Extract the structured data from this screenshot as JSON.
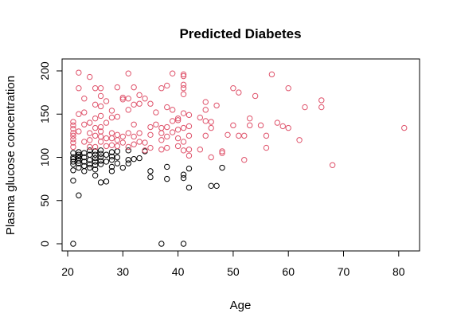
{
  "chart_data": {
    "type": "scatter",
    "title": "Predicted Diabetes",
    "xlabel": "Age",
    "ylabel": "Plasma glucose concentration",
    "xlim": [
      20,
      82
    ],
    "ylim": [
      0,
      200
    ],
    "x_ticks": [
      20,
      30,
      40,
      50,
      60,
      70,
      80
    ],
    "y_ticks": [
      0,
      50,
      100,
      150,
      200
    ],
    "grid": false,
    "legend": "none",
    "series": [
      {
        "color": "#000000",
        "points": [
          [
            21,
            0
          ],
          [
            21,
            73
          ],
          [
            21,
            85
          ],
          [
            21,
            92
          ],
          [
            21,
            95
          ],
          [
            21,
            98
          ],
          [
            21,
            100
          ],
          [
            21,
            105
          ],
          [
            22,
            56
          ],
          [
            22,
            88
          ],
          [
            22,
            93
          ],
          [
            22,
            96
          ],
          [
            22,
            99
          ],
          [
            22,
            101
          ],
          [
            22,
            103
          ],
          [
            22,
            106
          ],
          [
            23,
            84
          ],
          [
            23,
            90
          ],
          [
            23,
            95
          ],
          [
            23,
            100
          ],
          [
            23,
            105
          ],
          [
            24,
            88
          ],
          [
            24,
            92
          ],
          [
            24,
            97
          ],
          [
            24,
            103
          ],
          [
            24,
            108
          ],
          [
            25,
            79
          ],
          [
            25,
            86
          ],
          [
            25,
            91
          ],
          [
            25,
            95
          ],
          [
            25,
            99
          ],
          [
            25,
            103
          ],
          [
            25,
            107
          ],
          [
            26,
            71
          ],
          [
            26,
            92
          ],
          [
            26,
            96
          ],
          [
            26,
            100
          ],
          [
            26,
            104
          ],
          [
            26,
            108
          ],
          [
            27,
            72
          ],
          [
            27,
            95
          ],
          [
            27,
            103
          ],
          [
            28,
            84
          ],
          [
            28,
            89
          ],
          [
            28,
            97
          ],
          [
            28,
            101
          ],
          [
            28,
            106
          ],
          [
            29,
            93
          ],
          [
            29,
            100
          ],
          [
            29,
            107
          ],
          [
            30,
            88
          ],
          [
            31,
            93
          ],
          [
            31,
            97
          ],
          [
            31,
            108
          ],
          [
            32,
            98
          ],
          [
            33,
            99
          ],
          [
            34,
            107
          ],
          [
            35,
            77
          ],
          [
            35,
            84
          ],
          [
            37,
            0
          ],
          [
            38,
            75
          ],
          [
            38,
            89
          ],
          [
            41,
            0
          ],
          [
            41,
            76
          ],
          [
            41,
            80
          ],
          [
            42,
            65
          ],
          [
            42,
            87
          ],
          [
            46,
            67
          ],
          [
            47,
            67
          ],
          [
            48,
            88
          ]
        ]
      },
      {
        "color": "#DF536B",
        "points": [
          [
            21,
            112
          ],
          [
            21,
            117
          ],
          [
            21,
            121
          ],
          [
            21,
            125
          ],
          [
            21,
            128
          ],
          [
            21,
            133
          ],
          [
            21,
            137
          ],
          [
            21,
            141
          ],
          [
            22,
            130
          ],
          [
            22,
            150
          ],
          [
            22,
            180
          ],
          [
            22,
            198
          ],
          [
            23,
            118
          ],
          [
            23,
            138
          ],
          [
            23,
            152
          ],
          [
            23,
            168
          ],
          [
            24,
            112
          ],
          [
            24,
            120
          ],
          [
            24,
            128
          ],
          [
            24,
            140
          ],
          [
            24,
            193
          ],
          [
            25,
            112
          ],
          [
            25,
            125
          ],
          [
            25,
            134
          ],
          [
            25,
            145
          ],
          [
            25,
            161
          ],
          [
            25,
            180
          ],
          [
            26,
            118
          ],
          [
            26,
            124
          ],
          [
            26,
            130
          ],
          [
            26,
            135
          ],
          [
            26,
            148
          ],
          [
            26,
            159
          ],
          [
            26,
            171
          ],
          [
            26,
            180
          ],
          [
            27,
            113
          ],
          [
            27,
            122
          ],
          [
            27,
            140
          ],
          [
            27,
            165
          ],
          [
            28,
            114
          ],
          [
            28,
            122
          ],
          [
            28,
            128
          ],
          [
            28,
            146
          ],
          [
            28,
            154
          ],
          [
            29,
            113
          ],
          [
            29,
            120
          ],
          [
            29,
            126
          ],
          [
            29,
            147
          ],
          [
            29,
            181
          ],
          [
            30,
            117
          ],
          [
            30,
            124
          ],
          [
            30,
            167
          ],
          [
            30,
            169
          ],
          [
            31,
            112
          ],
          [
            31,
            128
          ],
          [
            31,
            155
          ],
          [
            31,
            168
          ],
          [
            31,
            197
          ],
          [
            32,
            115
          ],
          [
            32,
            124
          ],
          [
            32,
            138
          ],
          [
            32,
            161
          ],
          [
            32,
            181
          ],
          [
            33,
            118
          ],
          [
            33,
            128
          ],
          [
            33,
            162
          ],
          [
            33,
            172
          ],
          [
            34,
            108
          ],
          [
            34,
            117
          ],
          [
            34,
            168
          ],
          [
            35,
            111
          ],
          [
            35,
            126
          ],
          [
            35,
            135
          ],
          [
            35,
            162
          ],
          [
            36,
            138
          ],
          [
            36,
            152
          ],
          [
            37,
            109
          ],
          [
            37,
            120
          ],
          [
            37,
            128
          ],
          [
            37,
            134
          ],
          [
            37,
            180
          ],
          [
            38,
            111
          ],
          [
            38,
            124
          ],
          [
            38,
            135
          ],
          [
            38,
            158
          ],
          [
            38,
            183
          ],
          [
            39,
            129
          ],
          [
            39,
            142
          ],
          [
            39,
            155
          ],
          [
            39,
            197
          ],
          [
            40,
            113
          ],
          [
            40,
            122
          ],
          [
            40,
            132
          ],
          [
            40,
            143
          ],
          [
            40,
            145
          ],
          [
            41,
            108
          ],
          [
            41,
            118
          ],
          [
            41,
            134
          ],
          [
            41,
            151
          ],
          [
            41,
            173
          ],
          [
            41,
            180
          ],
          [
            41,
            184
          ],
          [
            41,
            194
          ],
          [
            41,
            196
          ],
          [
            42,
            102
          ],
          [
            42,
            109
          ],
          [
            42,
            125
          ],
          [
            42,
            136
          ],
          [
            42,
            149
          ],
          [
            44,
            109
          ],
          [
            44,
            146
          ],
          [
            45,
            125
          ],
          [
            45,
            142
          ],
          [
            45,
            155
          ],
          [
            45,
            164
          ],
          [
            46,
            100
          ],
          [
            46,
            134
          ],
          [
            46,
            141
          ],
          [
            47,
            160
          ],
          [
            48,
            105
          ],
          [
            48,
            107
          ],
          [
            49,
            126
          ],
          [
            50,
            137
          ],
          [
            50,
            180
          ],
          [
            51,
            125
          ],
          [
            51,
            175
          ],
          [
            52,
            97
          ],
          [
            52,
            125
          ],
          [
            53,
            145
          ],
          [
            53,
            137
          ],
          [
            54,
            171
          ],
          [
            55,
            137
          ],
          [
            56,
            111
          ],
          [
            56,
            125
          ],
          [
            57,
            196
          ],
          [
            58,
            140
          ],
          [
            59,
            136
          ],
          [
            60,
            134
          ],
          [
            60,
            180
          ],
          [
            62,
            120
          ],
          [
            63,
            158
          ],
          [
            66,
            158
          ],
          [
            66,
            166
          ],
          [
            68,
            91
          ],
          [
            81,
            134
          ]
        ]
      }
    ]
  }
}
